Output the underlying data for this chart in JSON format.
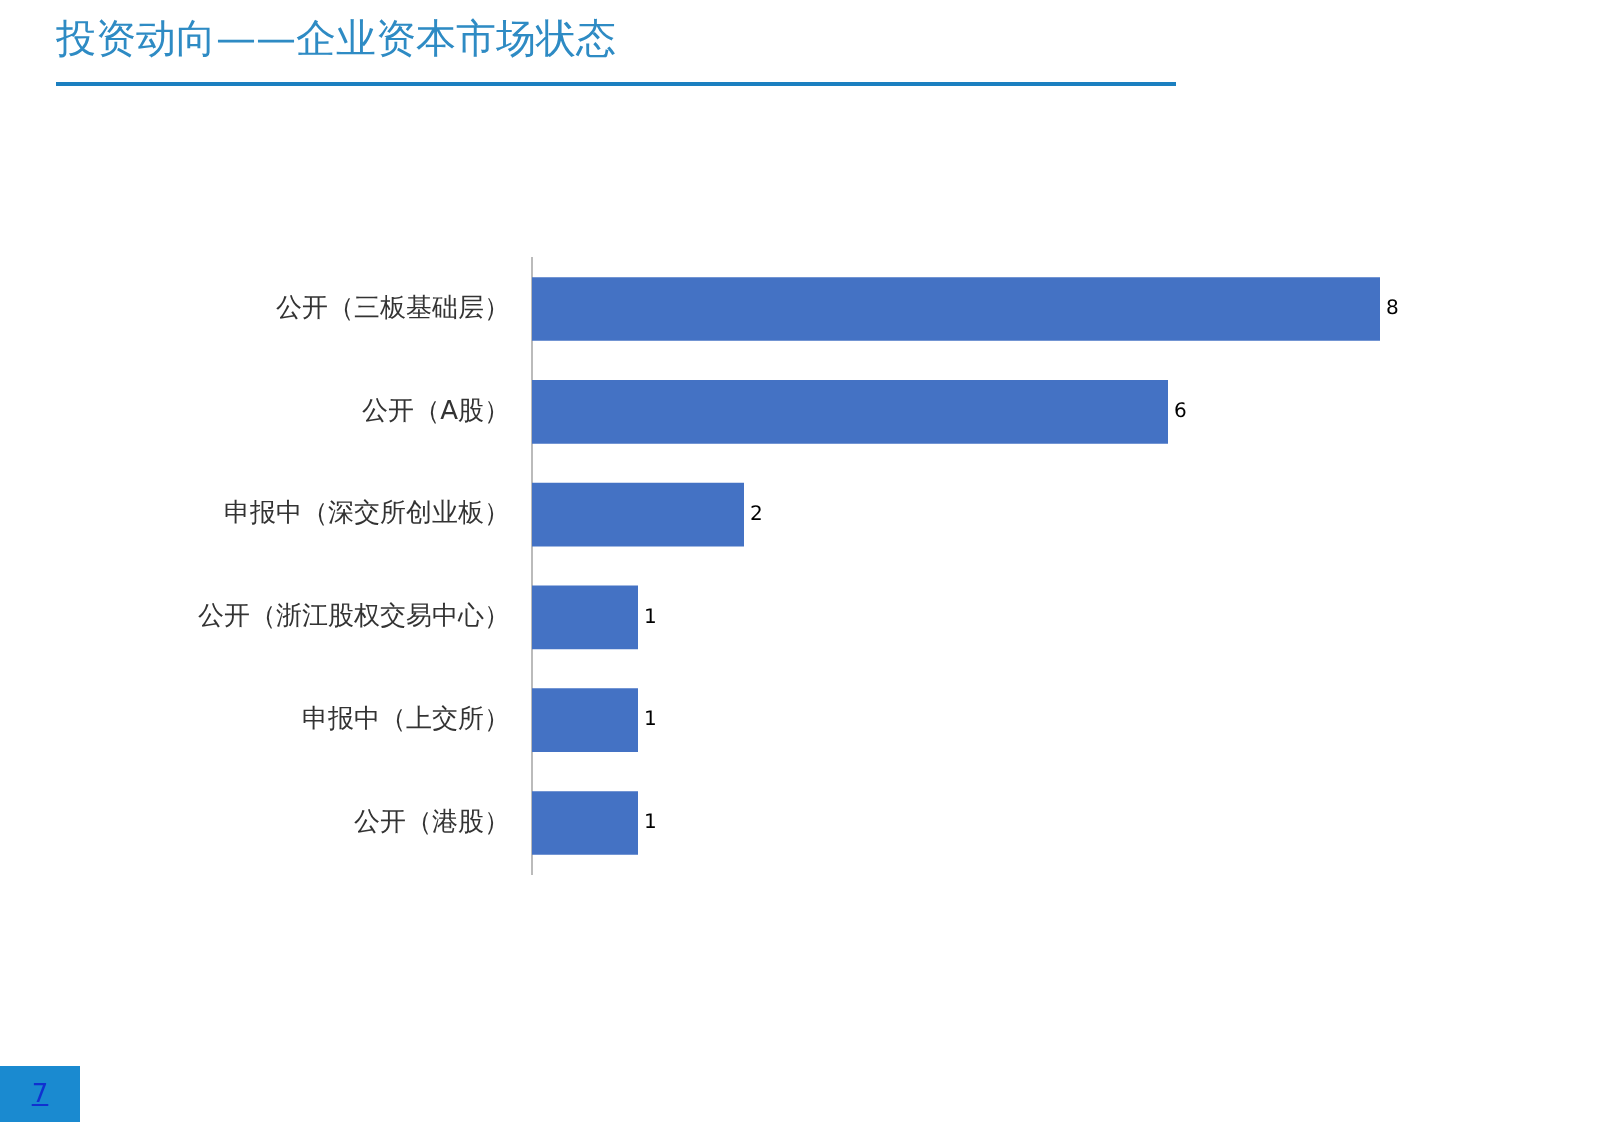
{
  "chart_data": {
    "type": "bar",
    "orientation": "horizontal",
    "title": "投资动向——企业资本市场状态",
    "categories": [
      "公开（三板基础层）",
      "公开（A股）",
      "申报中（深交所创业板）",
      "公开（浙江股权交易中心）",
      "申报中（上交所）",
      "公开（港股）"
    ],
    "values": [
      8,
      6,
      2,
      1,
      1,
      1
    ],
    "color": "#4472c4",
    "data_labels": true,
    "legend": false,
    "annotations": [
      "7"
    ]
  }
}
